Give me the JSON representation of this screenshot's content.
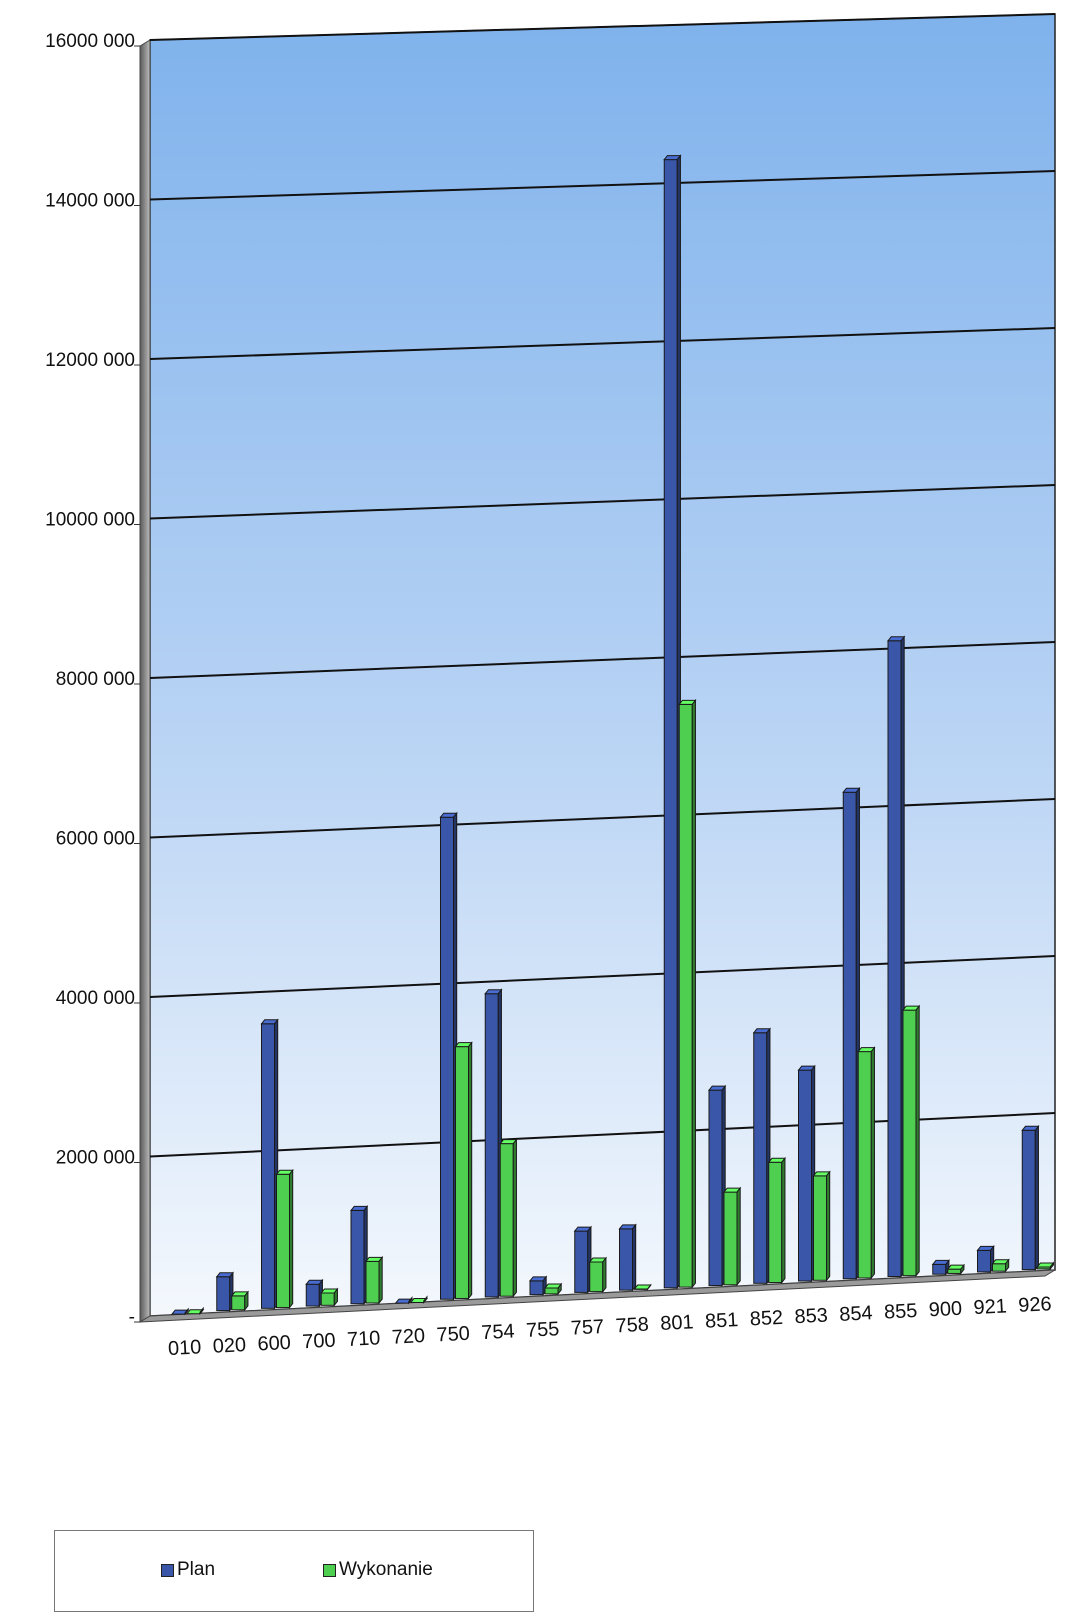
{
  "chart_data": {
    "type": "bar",
    "categories": [
      "010",
      "020",
      "600",
      "700",
      "710",
      "720",
      "750",
      "754",
      "755",
      "757",
      "758",
      "801",
      "851",
      "852",
      "853",
      "854",
      "855",
      "900",
      "921",
      "926"
    ],
    "series": [
      {
        "name": "Plan",
        "color": "#3a56a8",
        "values": [
          10000,
          450000,
          3600000,
          300000,
          1200000,
          5000,
          6100000,
          3850000,
          200000,
          800000,
          800000,
          14300000,
          2500000,
          3200000,
          2700000,
          6200000,
          8100000,
          150000,
          300000,
          1800000
        ]
      },
      {
        "name": "Wykonanie",
        "color": "#4fcf4f",
        "values": [
          5000,
          200000,
          1700000,
          180000,
          550000,
          3000,
          3200000,
          1950000,
          100000,
          400000,
          30000,
          7400000,
          1200000,
          1550000,
          1350000,
          2900000,
          3400000,
          80000,
          120000,
          50000
        ]
      }
    ],
    "yticks": [
      "-",
      "2000 000",
      "4000 000",
      "6000 000",
      "8000 000",
      "10000 000",
      "12000 000",
      "14000 000",
      "16000 000"
    ],
    "ylim": [
      0,
      16000000
    ],
    "grid": true,
    "legend_position": "bottom-left"
  },
  "colors": {
    "plan": "#3a56a8",
    "wykonanie": "#4fcf4f",
    "background_top": "#7fb2ec",
    "background_bottom": "#f4f8fd"
  }
}
